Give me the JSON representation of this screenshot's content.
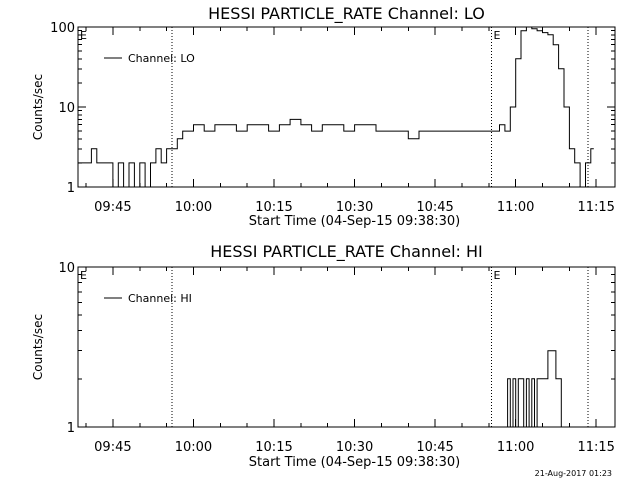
{
  "stamp": "21-Aug-2017 01:23",
  "chart_data": [
    {
      "type": "line",
      "title": "HESSI PARTICLE_RATE Channel: LO",
      "xlabel": "Start Time (04-Sep-15 09:38:30)",
      "ylabel": "Counts/sec",
      "yscale": "log",
      "ylim": [
        1,
        100
      ],
      "xlim": [
        "09:38:30",
        "11:18:30"
      ],
      "xticks": [
        "09:45",
        "10:00",
        "10:15",
        "10:30",
        "10:45",
        "11:00",
        "11:15"
      ],
      "yticks": [
        "1",
        "10",
        "100"
      ],
      "legend": "Channel: LO",
      "event_lines": [
        "09:56:00",
        "10:55:30",
        "11:13:30"
      ],
      "event_labels": [
        {
          "text": "E",
          "at": "09:38:30"
        },
        {
          "text": "E",
          "at": "10:55:30"
        }
      ],
      "series": [
        {
          "name": "Channel: LO",
          "x": [
            "09:38:30",
            "09:40:00",
            "09:41:00",
            "09:42:00",
            "09:43:00",
            "09:44:00",
            "09:45:00",
            "09:46:00",
            "09:47:00",
            "09:48:00",
            "09:49:00",
            "09:50:00",
            "09:51:00",
            "09:52:00",
            "09:53:00",
            "09:54:00",
            "09:55:00",
            "09:56:00",
            "09:57:00",
            "09:58:00",
            "10:00:00",
            "10:02:00",
            "10:04:00",
            "10:06:00",
            "10:08:00",
            "10:10:00",
            "10:12:00",
            "10:14:00",
            "10:16:00",
            "10:18:00",
            "10:20:00",
            "10:22:00",
            "10:24:00",
            "10:26:00",
            "10:28:00",
            "10:30:00",
            "10:32:00",
            "10:34:00",
            "10:36:00",
            "10:38:00",
            "10:40:00",
            "10:42:00",
            "10:44:00",
            "10:46:00",
            "10:48:00",
            "10:50:00",
            "10:52:00",
            "10:54:00",
            "10:56:00",
            "10:57:00",
            "10:58:00",
            "10:59:00",
            "11:00:00",
            "11:01:00",
            "11:02:00",
            "11:03:00",
            "11:04:00",
            "11:05:00",
            "11:06:00",
            "11:07:00",
            "11:08:00",
            "11:09:00",
            "11:10:00",
            "11:11:00",
            "11:12:00",
            "11:13:00",
            "11:14:00"
          ],
          "y": [
            2,
            2,
            3,
            2,
            2,
            2,
            1,
            2,
            1,
            2,
            1,
            2,
            1,
            2,
            3,
            2,
            3,
            3,
            4,
            5,
            6,
            5,
            6,
            6,
            5,
            6,
            6,
            5,
            6,
            7,
            6,
            5,
            6,
            6,
            5,
            6,
            6,
            5,
            5,
            5,
            4,
            5,
            5,
            5,
            5,
            5,
            5,
            5,
            5,
            6,
            5,
            10,
            40,
            90,
            100,
            95,
            90,
            85,
            80,
            60,
            30,
            10,
            3,
            2,
            1,
            2,
            3
          ]
        }
      ]
    },
    {
      "type": "line",
      "title": "HESSI PARTICLE_RATE Channel: HI",
      "xlabel": "Start Time (04-Sep-15 09:38:30)",
      "ylabel": "Counts/sec",
      "yscale": "log",
      "ylim": [
        1,
        10
      ],
      "xlim": [
        "09:38:30",
        "11:18:30"
      ],
      "xticks": [
        "09:45",
        "10:00",
        "10:15",
        "10:30",
        "10:45",
        "11:00",
        "11:15"
      ],
      "yticks": [
        "1",
        "10"
      ],
      "legend": "Channel: HI",
      "event_lines": [
        "09:56:00",
        "10:55:30",
        "11:13:30"
      ],
      "event_labels": [
        {
          "text": "E",
          "at": "09:38:30"
        },
        {
          "text": "E",
          "at": "10:55:30"
        }
      ],
      "series": [
        {
          "name": "Channel: HI",
          "x": [
            "10:58:00",
            "10:58:30",
            "10:59:00",
            "10:59:30",
            "11:00:00",
            "11:00:30",
            "11:01:00",
            "11:01:30",
            "11:02:00",
            "11:02:30",
            "11:03:00",
            "11:03:30",
            "11:04:00",
            "11:04:30",
            "11:05:00",
            "11:05:30",
            "11:06:00",
            "11:06:30",
            "11:07:00",
            "11:07:30",
            "11:08:00",
            "11:08:30"
          ],
          "y": [
            1,
            2,
            1,
            2,
            1,
            2,
            2,
            1,
            2,
            1,
            2,
            1,
            2,
            2,
            2,
            2,
            3,
            3,
            3,
            2,
            2,
            1
          ]
        }
      ]
    }
  ]
}
